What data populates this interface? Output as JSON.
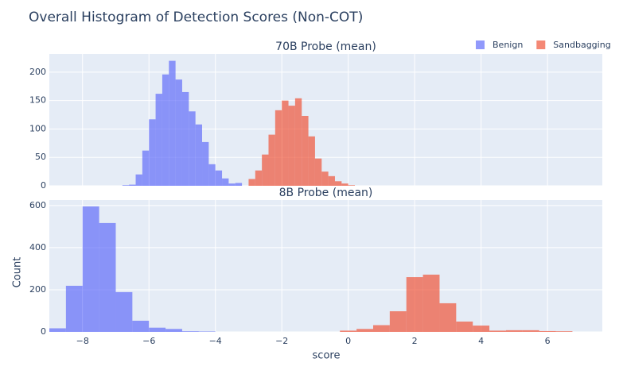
{
  "title": "Overall Histogram of Detection Scores (Non-COT)",
  "xlabel": "score",
  "ylabel": "Count",
  "legend_position": "top-right",
  "barmode": "overlay",
  "opacity": 0.7,
  "xlim": [
    -9,
    7.65
  ],
  "xticks": [
    {
      "value": -8,
      "label": "−8"
    },
    {
      "value": -6,
      "label": "−6"
    },
    {
      "value": -4,
      "label": "−4"
    },
    {
      "value": -2,
      "label": "−2"
    },
    0,
    2,
    4,
    6
  ],
  "chart_data": [
    {
      "type": "histogram",
      "title": "70B Probe (mean)",
      "ylim": [
        0,
        232
      ],
      "yticks": [
        0,
        50,
        100,
        150,
        200
      ],
      "grid": true,
      "series": [
        {
          "name": "Benign",
          "color": "#636efa",
          "bins": [
            -6.8,
            -6.6,
            -6.4,
            -6.2,
            -6.0,
            -5.8,
            -5.6,
            -5.4,
            -5.2,
            -5.0,
            -4.8,
            -4.6,
            -4.4,
            -4.2,
            -4.0,
            -3.8,
            -3.6,
            -3.4,
            -3.2
          ],
          "values": [
            1,
            2,
            20,
            62,
            117,
            162,
            196,
            220,
            187,
            165,
            131,
            108,
            77,
            38,
            27,
            13,
            4,
            5
          ]
        },
        {
          "name": "Sandbagging",
          "color": "#EF553B",
          "bins": [
            -3.0,
            -2.8,
            -2.6,
            -2.4,
            -2.2,
            -2.0,
            -1.8,
            -1.6,
            -1.4,
            -1.2,
            -1.0,
            -0.8,
            -0.6,
            -0.4,
            -0.2,
            0,
            0.2
          ],
          "values": [
            12,
            27,
            55,
            90,
            133,
            150,
            141,
            154,
            123,
            87,
            48,
            25,
            17,
            8,
            4,
            1
          ]
        }
      ]
    },
    {
      "type": "histogram",
      "title": "8B Probe (mean)",
      "ylim": [
        0,
        626
      ],
      "yticks": [
        0,
        200,
        400,
        600
      ],
      "grid": true,
      "series": [
        {
          "name": "Benign",
          "color": "#636efa",
          "bins": [
            -9,
            -8.5,
            -8,
            -7.5,
            -7,
            -6.5,
            -6,
            -5.5,
            -5,
            -4.5,
            -4
          ],
          "values": [
            17,
            219,
            596,
            517,
            189,
            53,
            20,
            14,
            3,
            2
          ]
        },
        {
          "name": "Sandbagging",
          "color": "#EF553B",
          "bins": [
            -0.25,
            0.25,
            0.75,
            1.25,
            1.75,
            2.25,
            2.75,
            3.25,
            3.75,
            4.25,
            4.75,
            5.25,
            5.75,
            6.25,
            6.75
          ],
          "values": [
            6,
            14,
            32,
            98,
            260,
            272,
            136,
            49,
            30,
            6,
            8,
            8,
            4,
            3
          ]
        }
      ]
    }
  ]
}
